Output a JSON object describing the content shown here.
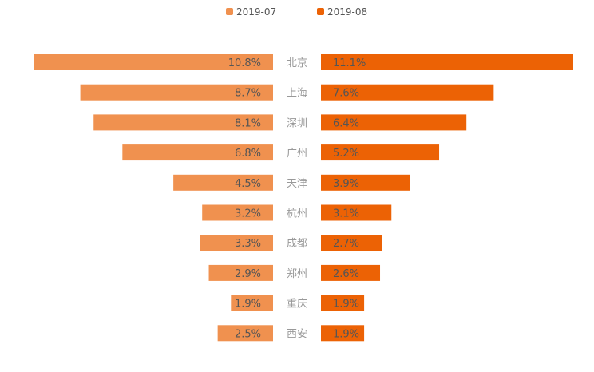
{
  "chart_data": {
    "type": "bar",
    "orientation": "butterfly-horizontal",
    "categories": [
      "北京",
      "上海",
      "深圳",
      "广州",
      "天津",
      "杭州",
      "成都",
      "郑州",
      "重庆",
      "西安"
    ],
    "series": [
      {
        "name": "2019-07",
        "color": "#F0914F",
        "values": [
          10.8,
          8.7,
          8.1,
          6.8,
          4.5,
          3.2,
          3.3,
          2.9,
          1.9,
          2.5
        ],
        "labels": [
          "10.8%",
          "8.7%",
          "8.1%",
          "6.8%",
          "4.5%",
          "3.2%",
          "3.3%",
          "2.9%",
          "1.9%",
          "2.5%"
        ]
      },
      {
        "name": "2019-08",
        "color": "#EC6205",
        "values": [
          11.1,
          7.6,
          6.4,
          5.2,
          3.9,
          3.1,
          2.7,
          2.6,
          1.9,
          1.9
        ],
        "labels": [
          "11.1%",
          "7.6%",
          "6.4%",
          "5.2%",
          "3.9%",
          "3.1%",
          "2.7%",
          "2.6%",
          "1.9%",
          "1.9%"
        ]
      }
    ],
    "value_max": 11.1,
    "unit": "%",
    "legend_position": "top-center",
    "grid": false
  }
}
